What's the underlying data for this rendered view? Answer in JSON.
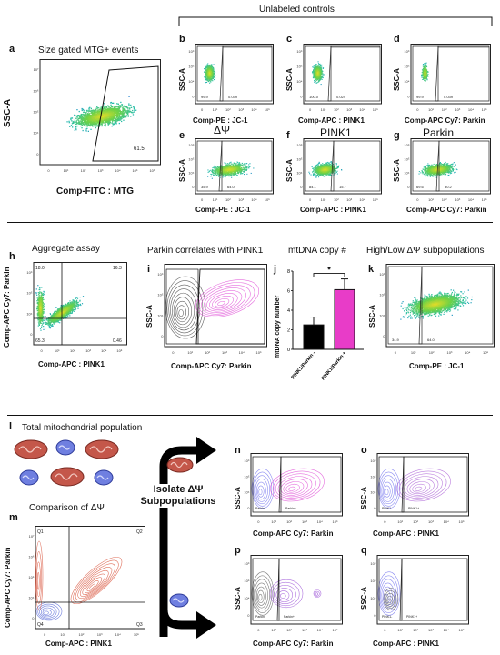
{
  "header": {
    "title": "Unlabeled controls"
  },
  "panels": {
    "a": {
      "letter": "a",
      "title": "Size gated MTG+ events",
      "xlabel": "Comp-FITC : MTG",
      "ylabel": "SSC-A",
      "gate": "61.5"
    },
    "b": {
      "letter": "b",
      "xlabel": "Comp-PE : JC-1",
      "ylabel": "SSC-A",
      "left": "99.9",
      "right": "0.039"
    },
    "c": {
      "letter": "c",
      "xlabel": "Comp-APC : PINK1",
      "ylabel": "SSC-A",
      "left": "100.0",
      "right": "0.024"
    },
    "d": {
      "letter": "d",
      "xlabel": "Comp-APC Cy7: Parkin",
      "ylabel": "SSC-A",
      "left": "99.9",
      "right": "0.039"
    },
    "e": {
      "letter": "e",
      "title": "ΔΨ",
      "xlabel": "Comp-PE : JC-1",
      "ylabel": "SSC-A",
      "left": "35.9",
      "right": "64.0"
    },
    "f": {
      "letter": "f",
      "title": "PINK1",
      "xlabel": "Comp-APC : PINK1",
      "ylabel": "SSC-A",
      "left": "84.1",
      "right": "15.7"
    },
    "g": {
      "letter": "g",
      "title": "Parkin",
      "xlabel": "Comp-APC Cy7: Parkin",
      "ylabel": "SSC-A",
      "left": "69.6",
      "right": "30.2"
    },
    "h": {
      "letter": "h",
      "title": "Aggregate assay",
      "xlabel": "Comp-APC : PINK1",
      "ylabel": "Comp-APC Cy7: Parkin",
      "q_ul": "18.0",
      "q_ur": "16.3",
      "q_ll": "65.3",
      "q_lr": "0.46"
    },
    "i": {
      "letter": "i",
      "title": "Parkin correlates with PINK1",
      "xlabel": "Comp-APC Cy7: Parkin",
      "ylabel": "SSC-A"
    },
    "j": {
      "letter": "j",
      "title": "mtDNA copy #",
      "ylabel": "mtDNA copy number",
      "sig": "*"
    },
    "k": {
      "letter": "k",
      "title": "High/Low ΔΨ subpopulations",
      "xlabel": "Comp-PE : JC-1",
      "ylabel": "SSC-A",
      "left": "34.9",
      "right": "64.0"
    },
    "l": {
      "letter": "l",
      "title": "Total mitochondrial population"
    },
    "m": {
      "letter": "m",
      "title": "Comparison of ΔΨ",
      "xlabel": "Comp-APC : PINK1",
      "ylabel": "Comp-APC Cy7: Parkin",
      "q1": "Q1",
      "q2": "Q2",
      "q3": "Q3",
      "q4": "Q4"
    },
    "n": {
      "letter": "n",
      "xlabel": "Comp-APC Cy7: Parkin",
      "ylabel": "SSC-A",
      "left": "Parkin-",
      "right": "Parkin+"
    },
    "o": {
      "letter": "o",
      "xlabel": "Comp-APC : PINK1",
      "ylabel": "SSC-A",
      "left": "PINK1-",
      "right": "PINK1+"
    },
    "p": {
      "letter": "p",
      "xlabel": "Comp-APC Cy7: Parkin",
      "ylabel": "SSC-A",
      "left": "Parkin-",
      "right": "Parkin+"
    },
    "q": {
      "letter": "q",
      "xlabel": "Comp-APC : PINK1",
      "ylabel": "SSC-A",
      "left": "PINK1-",
      "right": "PINK1+"
    }
  },
  "isolate": {
    "line1": "Isolate ΔΨ",
    "line2": "Subpopulations"
  },
  "ticks": {
    "x": [
      "0",
      "10¹",
      "10²",
      "10³",
      "10⁴",
      "10⁵",
      "10⁶"
    ],
    "y": [
      "0",
      "10⁴",
      "10⁵",
      "10⁶",
      "10⁷"
    ]
  },
  "colors": {
    "high_mmp": "#d9573f",
    "low_mmp": "#5566d6",
    "parkin_pos": "#e055d8",
    "bar_neg": "#000000",
    "bar_pos": "#e83cc8"
  },
  "chart_data": [
    {
      "type": "bar",
      "panel": "j",
      "title": "mtDNA copy #",
      "categories": [
        "PINK1/Parkin -",
        "PINK1/Parkin +"
      ],
      "values": [
        2.5,
        6.1
      ],
      "errors": [
        0.8,
        1.1
      ],
      "ylabel": "mtDNA copy number",
      "ylim": [
        0,
        8
      ],
      "yticks": [
        "0",
        "2",
        "4",
        "6",
        "8"
      ],
      "significance": "*"
    }
  ]
}
